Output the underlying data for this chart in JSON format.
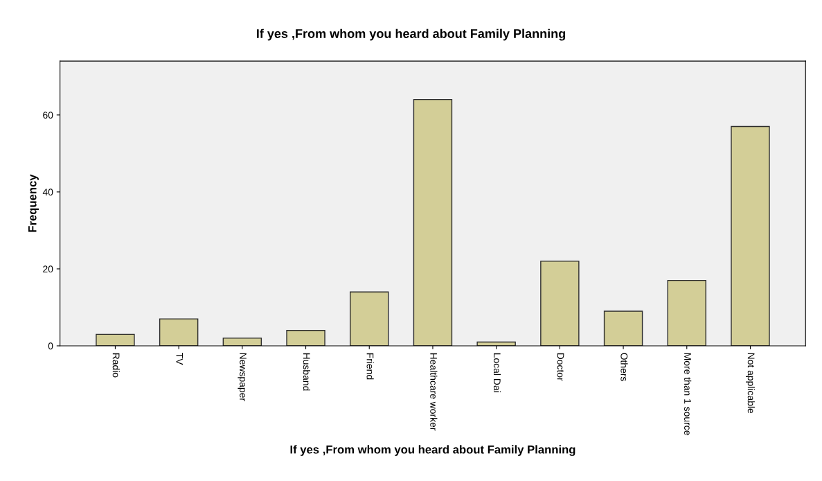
{
  "chart_data": {
    "type": "bar",
    "title": "If yes ,From whom you heard about Family Planning",
    "xlabel": "If yes ,From whom you heard about Family Planning",
    "ylabel": "Frequency",
    "categories": [
      "Radio",
      "TV",
      "Newspaper",
      "Husband",
      "Friend",
      "Healthcare worker",
      "Local Dai",
      "Doctor",
      "Others",
      "More than 1 source",
      "Not applicable"
    ],
    "values": [
      3,
      7,
      2,
      4,
      14,
      64,
      1,
      22,
      9,
      17,
      57
    ],
    "color": "#d3ce97",
    "ylim": [
      0,
      74
    ],
    "yticks": [
      0,
      20,
      40,
      60
    ],
    "grid": false
  }
}
